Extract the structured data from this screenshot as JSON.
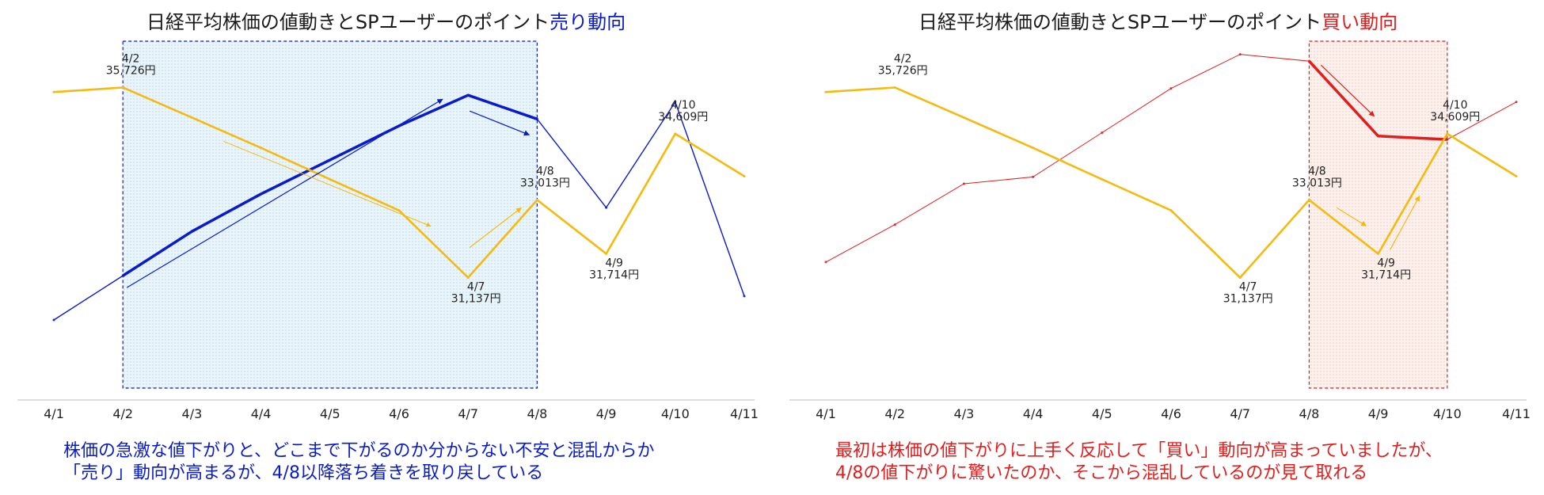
{
  "colors": {
    "nikkei": "#F5BA0F",
    "sell": "#0A1CC8",
    "buy": "#E01E1E",
    "axis": "#BBBBBB",
    "text": "#222222"
  },
  "charts": [
    {
      "title_prefix": "日経平均株価の値動きとSPユーザーのポイント",
      "title_highlight": "売り動向",
      "highlight_color": "#0A1CC8",
      "caption_lines": [
        "株価の急激な値下がりと、どこまで下がるのか分からない不安と混乱からか",
        "「売り」動向が高まるが、4/8以降落ち着きを取り戻している"
      ],
      "caption_color": "#0A1CC8"
    },
    {
      "title_prefix": "日経平均株価の値動きとSPユーザーのポイント",
      "title_highlight": "買い動向",
      "highlight_color": "#E01E1E",
      "caption_lines": [
        "最初は株価の値下がりに上手く反応して「買い」動向が高まっていましたが、",
        "4/8の値下がりに驚いたのか、そこから混乱しているのが見て取れる"
      ],
      "caption_color": "#E01E1E"
    }
  ],
  "chart_data": [
    {
      "type": "line",
      "title": "日経平均株価の値動きとSPユーザーのポイント売り動向",
      "categories": [
        "4/1",
        "4/2",
        "4/3",
        "4/4",
        "4/5",
        "4/6",
        "4/7",
        "4/8",
        "4/9",
        "4/10",
        "4/11"
      ],
      "series": [
        {
          "name": "日経平均株価",
          "color": "#F5BA0F",
          "values": [
            35617,
            35726,
            35000,
            34270,
            33510,
            32760,
            31137,
            33013,
            31714,
            34609,
            33585
          ]
        },
        {
          "name": "売り動向",
          "color": "#0A1CC8",
          "values": [
            20,
            33,
            46,
            57,
            67,
            77,
            86,
            79,
            53,
            84,
            27
          ]
        }
      ],
      "highlight_range": [
        "4/2",
        "4/8"
      ],
      "emphasis_segment": [
        "4/2",
        "4/8"
      ],
      "data_labels": [
        {
          "x": "4/2",
          "date": "4/2",
          "value": "35,726円"
        },
        {
          "x": "4/7",
          "date": "4/7",
          "value": "31,137円"
        },
        {
          "x": "4/8",
          "date": "4/8",
          "value": "33,013円"
        },
        {
          "x": "4/9",
          "date": "4/9",
          "value": "31,714円"
        },
        {
          "x": "4/10",
          "date": "4/10",
          "value": "34,609円"
        }
      ],
      "ylim_price": [
        30000,
        36500
      ],
      "ylim_points": [
        0,
        100
      ],
      "grid": false
    },
    {
      "type": "line",
      "title": "日経平均株価の値動きとSPユーザーのポイント買い動向",
      "categories": [
        "4/1",
        "4/2",
        "4/3",
        "4/4",
        "4/5",
        "4/6",
        "4/7",
        "4/8",
        "4/9",
        "4/10",
        "4/11"
      ],
      "series": [
        {
          "name": "日経平均株価",
          "color": "#F5BA0F",
          "values": [
            35617,
            35726,
            35000,
            34270,
            33510,
            32760,
            31137,
            33013,
            31714,
            34609,
            33585
          ]
        },
        {
          "name": "買い動向",
          "color": "#E01E1E",
          "values": [
            37,
            48,
            60,
            62,
            75,
            88,
            98,
            96,
            74,
            73,
            84
          ]
        }
      ],
      "highlight_range": [
        "4/8",
        "4/10"
      ],
      "emphasis_segment": [
        "4/8",
        "4/10"
      ],
      "data_labels": [
        {
          "x": "4/2",
          "date": "4/2",
          "value": "35,726円"
        },
        {
          "x": "4/7",
          "date": "4/7",
          "value": "31,137円"
        },
        {
          "x": "4/8",
          "date": "4/8",
          "value": "33,013円"
        },
        {
          "x": "4/9",
          "date": "4/9",
          "value": "31,714円"
        },
        {
          "x": "4/10",
          "date": "4/10",
          "value": "34,609円"
        }
      ],
      "ylim_price": [
        30000,
        36500
      ],
      "ylim_points": [
        0,
        100
      ],
      "grid": false
    }
  ]
}
